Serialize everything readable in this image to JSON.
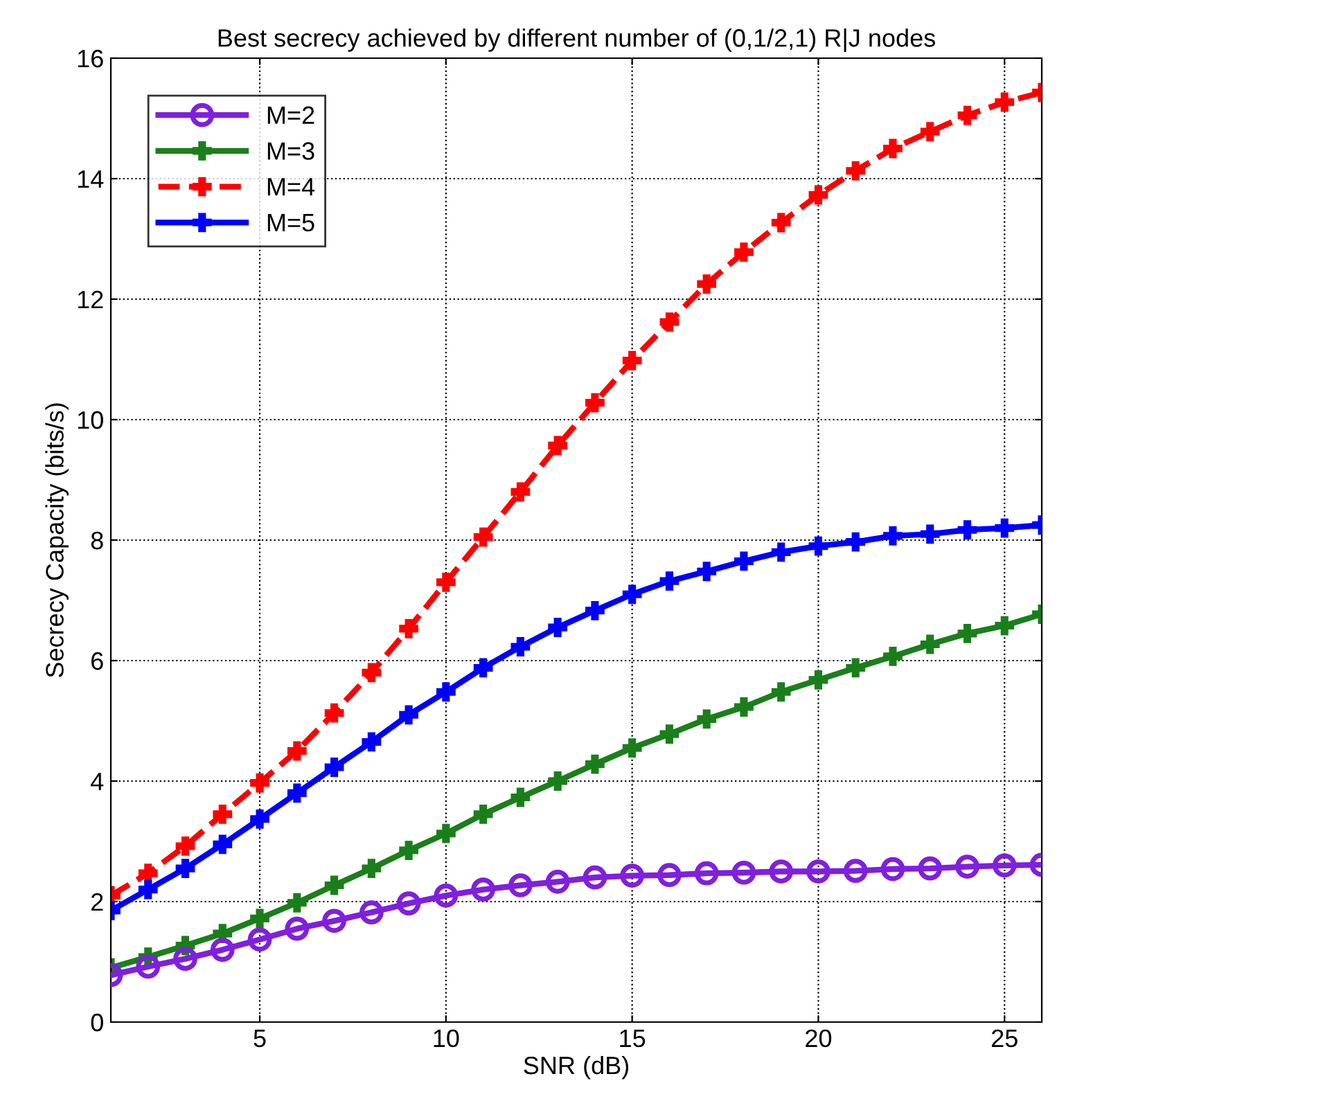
{
  "chart_data": {
    "type": "line",
    "title": "Best secrecy achieved by different number of (0,1/2,1) R|J nodes",
    "xlabel": "SNR (dB)",
    "ylabel": "Secrecy Capacity (bits/s)",
    "x": [
      1,
      2,
      3,
      4,
      5,
      6,
      7,
      8,
      9,
      10,
      11,
      12,
      13,
      14,
      15,
      16,
      17,
      18,
      19,
      20,
      21,
      22,
      23,
      24,
      25,
      26
    ],
    "xlim": [
      1,
      26
    ],
    "xticks": [
      5,
      10,
      15,
      20,
      25
    ],
    "ylim": [
      0,
      16
    ],
    "yticks": [
      0,
      2,
      4,
      6,
      8,
      10,
      12,
      14,
      16
    ],
    "grid": true,
    "legend": "top left",
    "series": [
      {
        "name": "M=2",
        "color": "#7f1fdf",
        "marker": "circle",
        "line_style": "solid",
        "values": [
          0.78,
          0.92,
          1.05,
          1.2,
          1.37,
          1.55,
          1.68,
          1.82,
          1.97,
          2.1,
          2.2,
          2.27,
          2.33,
          2.4,
          2.43,
          2.44,
          2.47,
          2.48,
          2.5,
          2.5,
          2.51,
          2.54,
          2.55,
          2.58,
          2.6,
          2.61
        ]
      },
      {
        "name": "M=3",
        "color": "#1a7f1a",
        "marker": "cross",
        "line_style": "solid",
        "values": [
          0.9,
          1.08,
          1.27,
          1.47,
          1.72,
          1.98,
          2.27,
          2.55,
          2.85,
          3.13,
          3.45,
          3.73,
          4.0,
          4.28,
          4.55,
          4.78,
          5.03,
          5.23,
          5.48,
          5.68,
          5.88,
          6.07,
          6.27,
          6.45,
          6.58,
          6.77
        ]
      },
      {
        "name": "M=4",
        "color": "#ff0000",
        "marker": "cross",
        "line_style": "dashed",
        "values": [
          2.1,
          2.47,
          2.92,
          3.45,
          3.97,
          4.5,
          5.13,
          5.8,
          6.53,
          7.3,
          8.05,
          8.8,
          9.57,
          10.28,
          10.98,
          11.62,
          12.25,
          12.78,
          13.27,
          13.73,
          14.13,
          14.5,
          14.78,
          15.05,
          15.27,
          15.43
        ]
      },
      {
        "name": "M=5",
        "color": "#0000ff",
        "marker": "cross",
        "line_style": "solid",
        "values": [
          1.85,
          2.2,
          2.55,
          2.95,
          3.37,
          3.8,
          4.23,
          4.65,
          5.1,
          5.48,
          5.88,
          6.23,
          6.55,
          6.83,
          7.1,
          7.32,
          7.48,
          7.65,
          7.8,
          7.9,
          7.97,
          8.07,
          8.1,
          8.17,
          8.2,
          8.25
        ]
      }
    ]
  }
}
